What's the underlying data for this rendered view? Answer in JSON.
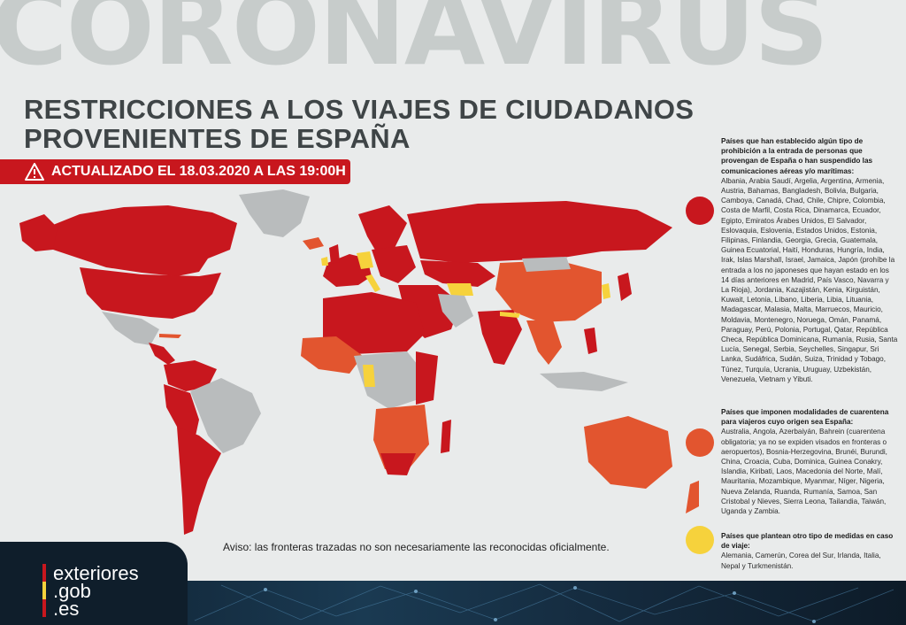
{
  "banner": "CORONAVIRUS",
  "title": {
    "line1": "RESTRICCIONES A LOS VIAJES DE CIUDADANOS",
    "line2": "PROVENIENTES DE ESPAÑA"
  },
  "updated": "ACTUALIZADO EL 18.03.2020 A LAS 19:00H",
  "disclaimer": "Aviso: las fronteras trazadas no son necesariamente las reconocidas oficialmente.",
  "logo": {
    "line1": "exteriores",
    "line2": ".gob",
    "line3": ".es"
  },
  "colors": {
    "prohibition": "#c8171e",
    "quarantine": "#e2552f",
    "other": "#f6d23c",
    "no_measures": "#b9bcbd",
    "background": "#e9ebeb"
  },
  "legend": [
    {
      "heading": "Países que han establecido algún tipo de prohibición a la entrada de personas que provengan de España o han suspendido las comunicaciones aéreas y/o marítimas:",
      "countries": "Albania, Arabia Saudí, Argelia, Argentina, Armenia, Austria, Bahamas, Bangladesh, Bolivia, Bulgaria, Camboya, Canadá, Chad, Chile, Chipre, Colombia, Costa de Marfil, Costa Rica, Dinamarca, Ecuador, Egipto, Emiratos Árabes Unidos, El Salvador, Eslovaquia, Eslovenia, Estados Unidos, Estonia, Filipinas, Finlandia, Georgia, Grecia, Guatemala, Guinea Ecuatorial, Haití, Honduras, Hungría, India, Irak, Islas Marshall, Israel, Jamaica, Japón (prohíbe la entrada a los no japoneses que hayan estado en los 14 días anteriores en Madrid, País Vasco, Navarra y La Rioja), Jordania, Kazajistán, Kenia, Kirguistán, Kuwait, Letonia, Líbano, Liberia, Libia, Lituania, Madagascar, Malasia, Malta, Marruecos, Mauricio, Moldavia, Montenegro, Noruega, Omán, Panamá, Paraguay, Perú, Polonia, Portugal, Qatar, República Checa, República Dominicana, Rumanía, Rusia, Santa Lucía, Senegal, Serbia, Seychelles, Singapur, Sri Lanka, Sudáfrica, Sudán, Suiza, Trinidad y Tobago, Túnez, Turquía, Ucrania, Uruguay, Uzbekistán, Venezuela, Vietnam y Yibuti."
    },
    {
      "heading": "Países que imponen modalidades de cuarentena para viajeros cuyo origen sea España:",
      "countries": "Australia, Angola, Azerbaiyán, Bahrein (cuarentena obligatoria; ya no se expiden visados en fronteras o aeropuertos), Bosnia-Herzegovina, Brunéi, Burundi, China, Croacia, Cuba, Dominica, Guinea Conakry, Islandia, Kiribati, Laos, Macedonia del Norte, Malí, Mauritania, Mozambique, Myanmar, Níger, Nigeria, Nueva Zelanda, Ruanda, Rumanía, Samoa, San Cristobal y Nieves, Sierra Leona, Tailandia, Taiwán, Uganda y Zambia."
    },
    {
      "heading": "Países que plantean otro tipo de medidas en caso de viaje:",
      "countries": "Alemania, Camerún, Corea del Sur, Irlanda, Italia, Nepal y Turkmenistán."
    }
  ]
}
